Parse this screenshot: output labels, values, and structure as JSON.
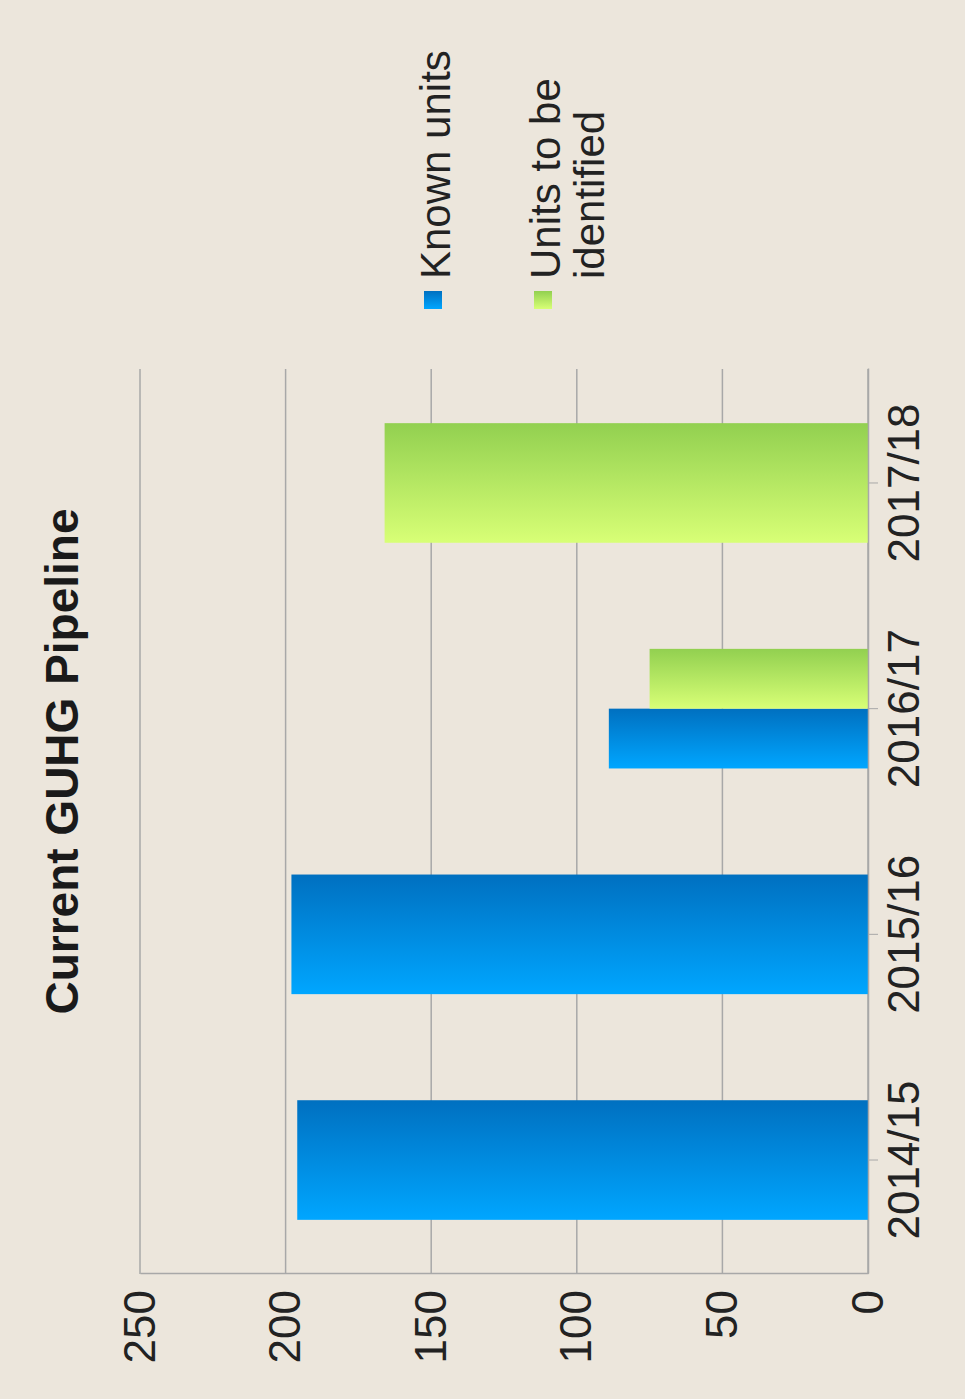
{
  "chart_data": {
    "type": "bar",
    "title": "Current GUHG Pipeline",
    "categories": [
      "2014/15",
      "2015/16",
      "2016/17",
      "2017/18"
    ],
    "series": [
      {
        "name": "Known units",
        "color": "#0070c0",
        "values": [
          196,
          198,
          89,
          null
        ]
      },
      {
        "name": "Units to be identified",
        "color": "#92d050",
        "values": [
          null,
          null,
          75,
          166
        ]
      }
    ],
    "ylim": [
      0,
      250
    ],
    "yticks": [
      0,
      50,
      100,
      150,
      200,
      250
    ],
    "grid": true,
    "legend": "right"
  }
}
